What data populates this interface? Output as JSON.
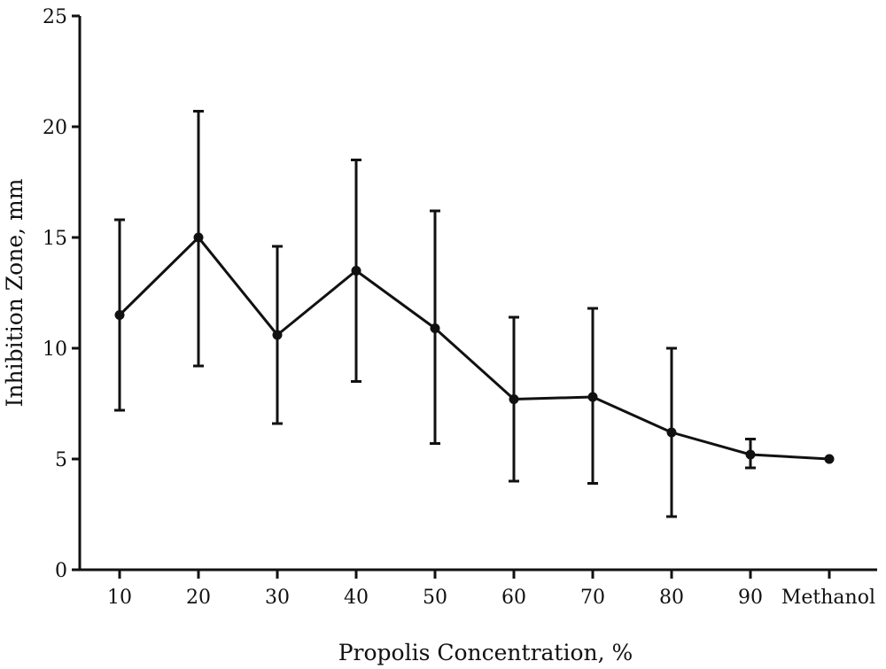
{
  "chart_data": {
    "type": "line",
    "title": "",
    "xlabel": "Propolis Concentration, %",
    "ylabel": "Inhibition Zone, mm",
    "categories": [
      "10",
      "20",
      "30",
      "40",
      "50",
      "60",
      "70",
      "80",
      "90",
      "Methanol"
    ],
    "series": [
      {
        "values": [
          11.5,
          15.0,
          10.6,
          13.5,
          10.9,
          7.7,
          7.8,
          6.2,
          5.2,
          5.0
        ],
        "error_low": [
          7.2,
          9.2,
          6.6,
          8.5,
          5.7,
          4.0,
          3.9,
          2.4,
          4.6,
          null
        ],
        "error_high": [
          15.8,
          20.7,
          14.6,
          18.5,
          16.2,
          11.4,
          11.8,
          10.0,
          5.9,
          null
        ],
        "color": "#111111"
      }
    ],
    "ylim": [
      0,
      25
    ],
    "yticks": [
      0,
      5,
      10,
      15,
      20,
      25
    ],
    "grid": false,
    "legend": "none"
  }
}
